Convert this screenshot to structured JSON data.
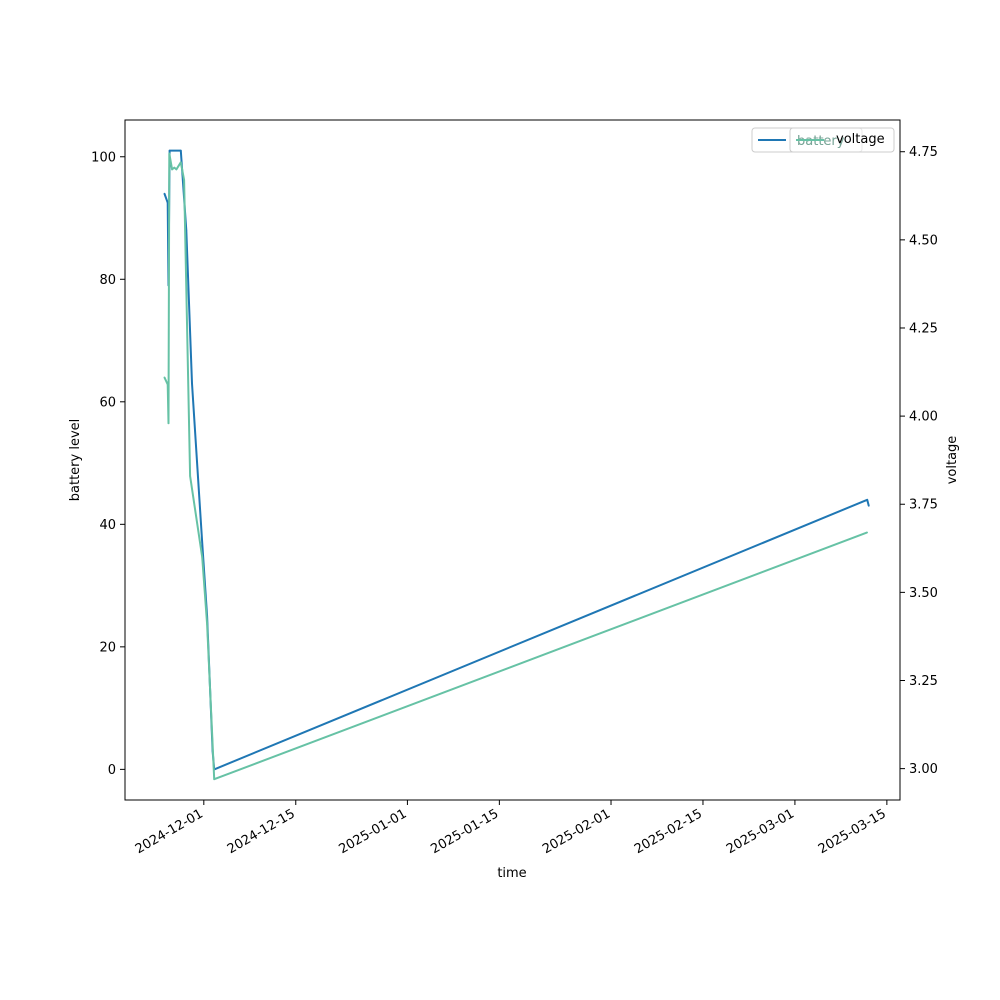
{
  "chart_data": {
    "type": "line",
    "xlabel": "time",
    "ylabel_left": "battery level",
    "ylabel_right": "voltage",
    "x_ticks": [
      "2024-12-01",
      "2024-12-15",
      "2025-01-01",
      "2025-01-15",
      "2025-02-01",
      "2025-02-15",
      "2025-03-01",
      "2025-03-15"
    ],
    "y_left_ticks": [
      0,
      20,
      40,
      60,
      80,
      100
    ],
    "y_right_ticks": [
      "3.00",
      "3.25",
      "3.50",
      "3.75",
      "4.00",
      "4.25",
      "4.50",
      "4.75"
    ],
    "ylim_left": [
      -5,
      106
    ],
    "ylim_right": [
      2.911,
      4.84
    ],
    "xlim": [
      "2024-11-19",
      "2025-03-17"
    ],
    "grid": false,
    "legend_position": "top-right",
    "legend_entries": [
      {
        "label": "battery",
        "color": "#1f77b4"
      },
      {
        "label": "battery",
        "color": "#66c2a5"
      },
      {
        "label": "voltage",
        "color": "#66c2a5"
      }
    ],
    "series": [
      {
        "name": "battery",
        "axis": "left",
        "color": "#1f77b4",
        "points": [
          [
            "2024-11-25T00:00",
            94
          ],
          [
            "2024-11-25T12:00",
            92.5
          ],
          [
            "2024-11-25T15:00",
            79
          ],
          [
            "2024-11-25T19:00",
            101
          ],
          [
            "2024-11-27T12:00",
            101
          ],
          [
            "2024-11-28T08:00",
            88
          ],
          [
            "2024-11-29T05:00",
            63
          ],
          [
            "2024-11-30T18:00",
            37
          ],
          [
            "2024-12-01T12:00",
            25
          ],
          [
            "2024-12-02T08:00",
            3
          ],
          [
            "2024-12-02T14:00",
            0
          ],
          [
            "2025-03-12T00:00",
            44
          ],
          [
            "2025-03-12T06:00",
            43
          ]
        ]
      },
      {
        "name": "voltage",
        "axis": "right",
        "color": "#66c2a5",
        "points": [
          [
            "2024-11-25T00:00",
            4.11
          ],
          [
            "2024-11-25T12:00",
            4.09
          ],
          [
            "2024-11-25T15:00",
            3.98
          ],
          [
            "2024-11-25T18:00",
            4.745
          ],
          [
            "2024-11-26T04:00",
            4.7
          ],
          [
            "2024-11-26T12:00",
            4.705
          ],
          [
            "2024-11-26T20:00",
            4.7
          ],
          [
            "2024-11-27T12:00",
            4.72
          ],
          [
            "2024-11-28T00:00",
            4.67
          ],
          [
            "2024-11-28T22:00",
            3.83
          ],
          [
            "2024-11-30T18:00",
            3.6
          ],
          [
            "2024-12-01T12:00",
            3.41
          ],
          [
            "2024-12-02T14:00",
            2.97
          ],
          [
            "2025-03-12T00:00",
            3.67
          ]
        ]
      }
    ]
  }
}
